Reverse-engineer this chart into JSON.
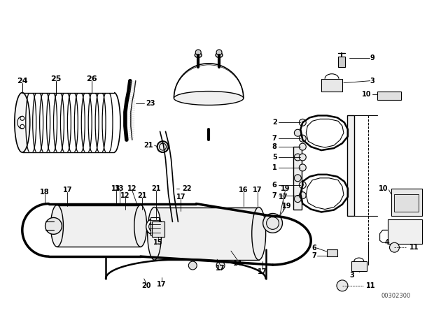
{
  "bg_color": "#ffffff",
  "line_color": "#000000",
  "diagram_code": "00302300",
  "fig_width": 6.4,
  "fig_height": 4.48,
  "dpi": 100
}
